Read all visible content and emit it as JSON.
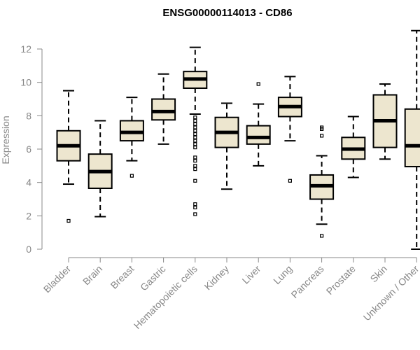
{
  "chart_data": {
    "type": "boxplot",
    "title": "ENSG00000114013 - CD86",
    "xlabel": "",
    "ylabel": "Expression",
    "ylim": [
      0,
      13.2
    ],
    "yticks": [
      0,
      2,
      4,
      6,
      8,
      10,
      12
    ],
    "grid": false,
    "box_fill": "#ede6cf",
    "box_stroke": "#000000",
    "axis_color": "#888888",
    "categories": [
      "Bladder",
      "Brain",
      "Breast",
      "Gastric",
      "Hematopoietic cells",
      "Kidney",
      "Liver",
      "Lung",
      "Pancreas",
      "Prostate",
      "Skin",
      "Unknown / Other"
    ],
    "series": [
      {
        "category": "Bladder",
        "min": 3.9,
        "q1": 5.3,
        "median": 6.2,
        "q3": 7.1,
        "max": 9.5,
        "outliers": [
          1.7
        ]
      },
      {
        "category": "Brain",
        "min": 1.95,
        "q1": 3.65,
        "median": 4.65,
        "q3": 5.7,
        "max": 7.7,
        "outliers": []
      },
      {
        "category": "Breast",
        "min": 5.3,
        "q1": 6.5,
        "median": 7.0,
        "q3": 7.7,
        "max": 9.1,
        "outliers": [
          4.4
        ]
      },
      {
        "category": "Gastric",
        "min": 6.3,
        "q1": 7.75,
        "median": 8.25,
        "q3": 9.0,
        "max": 10.5,
        "outliers": []
      },
      {
        "category": "Hematopoietic cells",
        "min": 8.1,
        "q1": 9.65,
        "median": 10.2,
        "q3": 10.65,
        "max": 12.1,
        "outliers": [
          7.9,
          7.7,
          7.5,
          7.3,
          7.1,
          6.9,
          6.7,
          6.5,
          6.3,
          6.1,
          5.5,
          5.3,
          5.0,
          4.8,
          4.1,
          2.7,
          2.5,
          2.1
        ]
      },
      {
        "category": "Kidney",
        "min": 3.6,
        "q1": 6.1,
        "median": 7.0,
        "q3": 7.9,
        "max": 8.75,
        "outliers": []
      },
      {
        "category": "Liver",
        "min": 5.0,
        "q1": 6.3,
        "median": 6.7,
        "q3": 7.4,
        "max": 8.7,
        "outliers": [
          9.9
        ]
      },
      {
        "category": "Lung",
        "min": 6.5,
        "q1": 7.95,
        "median": 8.55,
        "q3": 9.1,
        "max": 10.35,
        "outliers": [
          4.1
        ]
      },
      {
        "category": "Pancreas",
        "min": 1.5,
        "q1": 3.0,
        "median": 3.8,
        "q3": 4.45,
        "max": 5.6,
        "outliers": [
          0.8,
          6.8,
          7.2,
          7.3
        ]
      },
      {
        "category": "Prostate",
        "min": 4.3,
        "q1": 5.4,
        "median": 6.0,
        "q3": 6.7,
        "max": 7.95,
        "outliers": []
      },
      {
        "category": "Skin",
        "min": 5.4,
        "q1": 6.1,
        "median": 7.7,
        "q3": 9.25,
        "max": 9.9,
        "outliers": []
      },
      {
        "category": "Unknown / Other",
        "min": 0.0,
        "q1": 4.95,
        "median": 6.2,
        "q3": 8.4,
        "max": 13.1,
        "outliers": []
      }
    ]
  }
}
